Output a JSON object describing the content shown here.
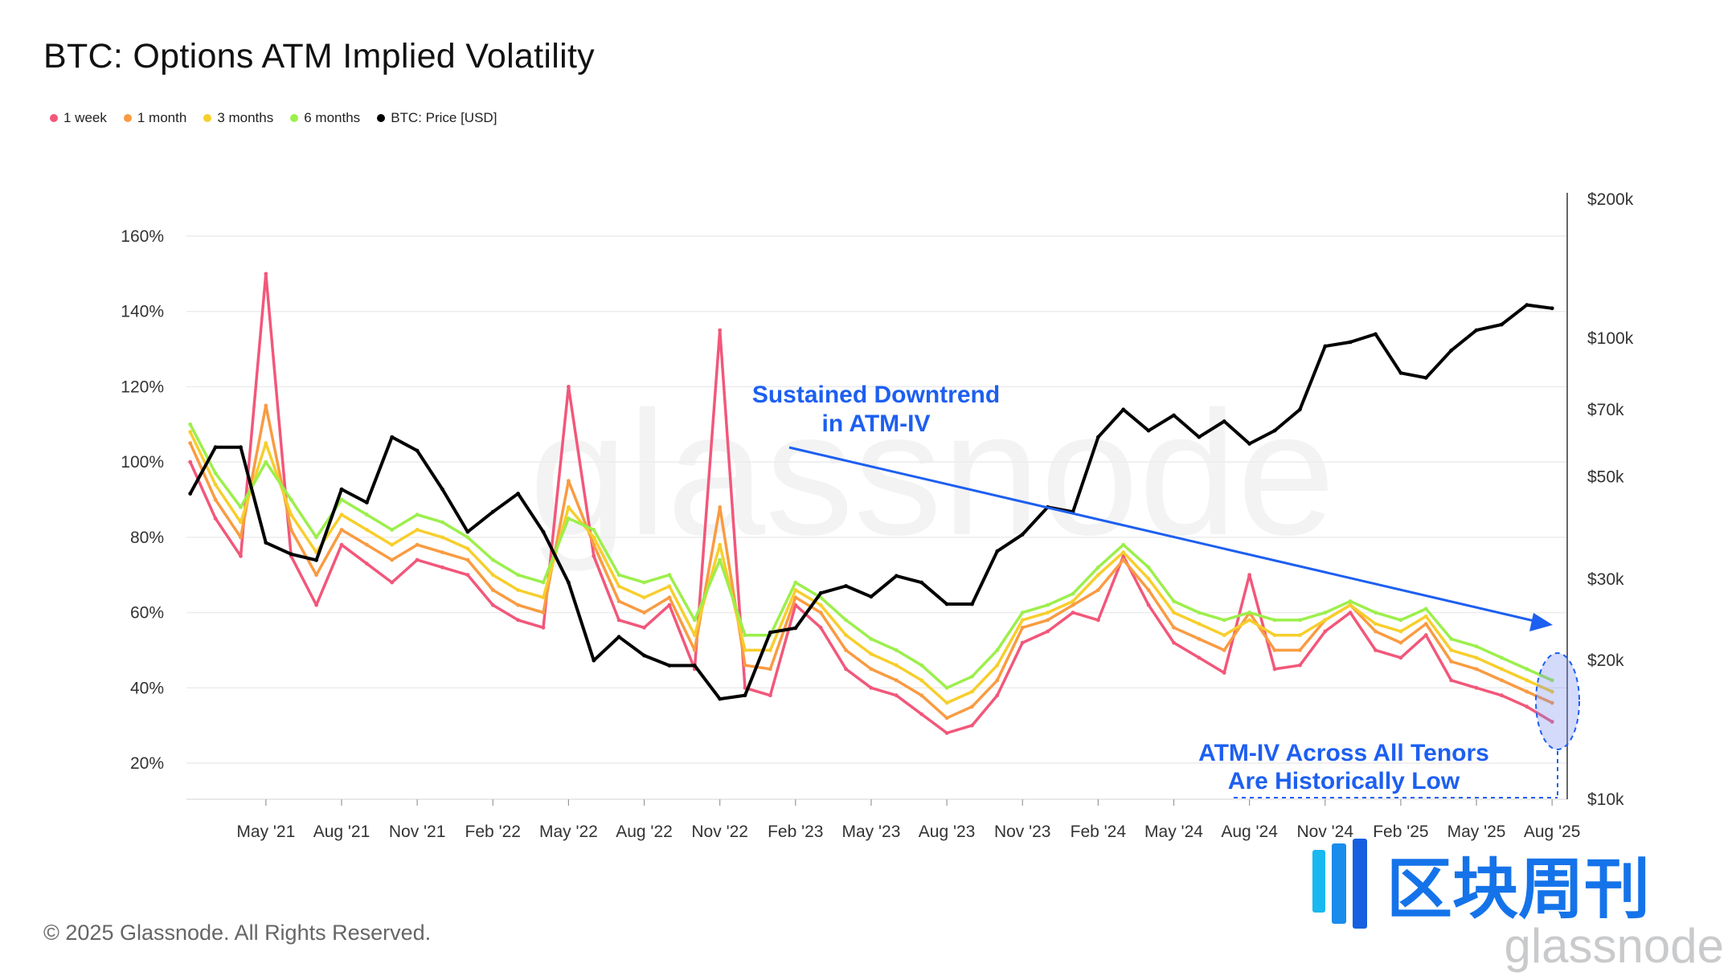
{
  "chart_data": {
    "type": "line",
    "title": "BTC: Options ATM Implied Volatility",
    "legend_position": "top-left",
    "grid": "horizontal",
    "y_left": {
      "ticks": [
        "20%",
        "40%",
        "60%",
        "80%",
        "100%",
        "120%",
        "140%",
        "160%"
      ],
      "tick_values": [
        20,
        40,
        60,
        80,
        100,
        120,
        140,
        160
      ],
      "range": [
        10,
        162
      ]
    },
    "y_right": {
      "scale": "log",
      "ticks": [
        "$10k",
        "$20k",
        "$30k",
        "$50k",
        "$70k",
        "$100k",
        "$200k"
      ],
      "tick_values": [
        10000,
        20000,
        30000,
        50000,
        70000,
        100000,
        200000
      ],
      "range": [
        10000,
        200000
      ]
    },
    "x_ticks": [
      "May '21",
      "Aug '21",
      "Nov '21",
      "Feb '22",
      "May '22",
      "Aug '22",
      "Nov '22",
      "Feb '23",
      "May '23",
      "Aug '23",
      "Nov '23",
      "Feb '24",
      "May '24",
      "Aug '24",
      "Nov '24",
      "Feb '25",
      "May '25",
      "Aug '25"
    ],
    "x_tick_dates": [
      "2021-05",
      "2021-08",
      "2021-11",
      "2022-02",
      "2022-05",
      "2022-08",
      "2022-11",
      "2023-02",
      "2023-05",
      "2023-08",
      "2023-11",
      "2024-02",
      "2024-05",
      "2024-08",
      "2024-11",
      "2025-02",
      "2025-05",
      "2025-08"
    ],
    "x_range": [
      "2021-02",
      "2025-08"
    ],
    "series": [
      {
        "name": "1 week",
        "color": "#f2577a",
        "axis": "left",
        "x": [
          "2021-02",
          "2021-03",
          "2021-04",
          "2021-05",
          "2021-06",
          "2021-07",
          "2021-08",
          "2021-09",
          "2021-10",
          "2021-11",
          "2021-12",
          "2022-01",
          "2022-02",
          "2022-03",
          "2022-04",
          "2022-05",
          "2022-06",
          "2022-07",
          "2022-08",
          "2022-09",
          "2022-10",
          "2022-11",
          "2022-12",
          "2023-01",
          "2023-02",
          "2023-03",
          "2023-04",
          "2023-05",
          "2023-06",
          "2023-07",
          "2023-08",
          "2023-09",
          "2023-10",
          "2023-11",
          "2023-12",
          "2024-01",
          "2024-02",
          "2024-03",
          "2024-04",
          "2024-05",
          "2024-06",
          "2024-07",
          "2024-08",
          "2024-09",
          "2024-10",
          "2024-11",
          "2024-12",
          "2025-01",
          "2025-02",
          "2025-03",
          "2025-04",
          "2025-05",
          "2025-06",
          "2025-07",
          "2025-08"
        ],
        "y": [
          100,
          85,
          75,
          150,
          75,
          62,
          78,
          73,
          68,
          74,
          72,
          70,
          62,
          58,
          56,
          120,
          75,
          58,
          56,
          62,
          45,
          135,
          40,
          38,
          62,
          56,
          45,
          40,
          38,
          33,
          28,
          30,
          38,
          52,
          55,
          60,
          58,
          75,
          62,
          52,
          48,
          44,
          70,
          45,
          46,
          55,
          60,
          50,
          48,
          54,
          42,
          40,
          38,
          35,
          31
        ]
      },
      {
        "name": "1 month",
        "color": "#f99b42",
        "axis": "left",
        "x": [
          "2021-02",
          "2021-03",
          "2021-04",
          "2021-05",
          "2021-06",
          "2021-07",
          "2021-08",
          "2021-09",
          "2021-10",
          "2021-11",
          "2021-12",
          "2022-01",
          "2022-02",
          "2022-03",
          "2022-04",
          "2022-05",
          "2022-06",
          "2022-07",
          "2022-08",
          "2022-09",
          "2022-10",
          "2022-11",
          "2022-12",
          "2023-01",
          "2023-02",
          "2023-03",
          "2023-04",
          "2023-05",
          "2023-06",
          "2023-07",
          "2023-08",
          "2023-09",
          "2023-10",
          "2023-11",
          "2023-12",
          "2024-01",
          "2024-02",
          "2024-03",
          "2024-04",
          "2024-05",
          "2024-06",
          "2024-07",
          "2024-08",
          "2024-09",
          "2024-10",
          "2024-11",
          "2024-12",
          "2025-01",
          "2025-02",
          "2025-03",
          "2025-04",
          "2025-05",
          "2025-06",
          "2025-07",
          "2025-08"
        ],
        "y": [
          105,
          90,
          80,
          115,
          82,
          70,
          82,
          78,
          74,
          78,
          76,
          74,
          66,
          62,
          60,
          95,
          78,
          63,
          60,
          64,
          50,
          88,
          46,
          45,
          64,
          60,
          50,
          45,
          42,
          38,
          32,
          35,
          42,
          56,
          58,
          62,
          66,
          74,
          66,
          56,
          53,
          50,
          60,
          50,
          50,
          58,
          62,
          55,
          52,
          57,
          47,
          45,
          42,
          39,
          36
        ]
      },
      {
        "name": "3 months",
        "color": "#f7ce2c",
        "axis": "left",
        "x": [
          "2021-02",
          "2021-03",
          "2021-04",
          "2021-05",
          "2021-06",
          "2021-07",
          "2021-08",
          "2021-09",
          "2021-10",
          "2021-11",
          "2021-12",
          "2022-01",
          "2022-02",
          "2022-03",
          "2022-04",
          "2022-05",
          "2022-06",
          "2022-07",
          "2022-08",
          "2022-09",
          "2022-10",
          "2022-11",
          "2022-12",
          "2023-01",
          "2023-02",
          "2023-03",
          "2023-04",
          "2023-05",
          "2023-06",
          "2023-07",
          "2023-08",
          "2023-09",
          "2023-10",
          "2023-11",
          "2023-12",
          "2024-01",
          "2024-02",
          "2024-03",
          "2024-04",
          "2024-05",
          "2024-06",
          "2024-07",
          "2024-08",
          "2024-09",
          "2024-10",
          "2024-11",
          "2024-12",
          "2025-01",
          "2025-02",
          "2025-03",
          "2025-04",
          "2025-05",
          "2025-06",
          "2025-07",
          "2025-08"
        ],
        "y": [
          108,
          94,
          84,
          105,
          86,
          76,
          86,
          82,
          78,
          82,
          80,
          77,
          70,
          66,
          64,
          88,
          80,
          67,
          64,
          67,
          54,
          78,
          50,
          50,
          66,
          62,
          54,
          49,
          46,
          42,
          36,
          39,
          46,
          58,
          60,
          63,
          70,
          76,
          69,
          60,
          57,
          54,
          58,
          54,
          54,
          58,
          62,
          57,
          55,
          59,
          50,
          48,
          45,
          42,
          39
        ]
      },
      {
        "name": "6 months",
        "color": "#9cef4b",
        "axis": "left",
        "x": [
          "2021-02",
          "2021-03",
          "2021-04",
          "2021-05",
          "2021-06",
          "2021-07",
          "2021-08",
          "2021-09",
          "2021-10",
          "2021-11",
          "2021-12",
          "2022-01",
          "2022-02",
          "2022-03",
          "2022-04",
          "2022-05",
          "2022-06",
          "2022-07",
          "2022-08",
          "2022-09",
          "2022-10",
          "2022-11",
          "2022-12",
          "2023-01",
          "2023-02",
          "2023-03",
          "2023-04",
          "2023-05",
          "2023-06",
          "2023-07",
          "2023-08",
          "2023-09",
          "2023-10",
          "2023-11",
          "2023-12",
          "2024-01",
          "2024-02",
          "2024-03",
          "2024-04",
          "2024-05",
          "2024-06",
          "2024-07",
          "2024-08",
          "2024-09",
          "2024-10",
          "2024-11",
          "2024-12",
          "2025-01",
          "2025-02",
          "2025-03",
          "2025-04",
          "2025-05",
          "2025-06",
          "2025-07",
          "2025-08"
        ],
        "y": [
          110,
          97,
          88,
          100,
          90,
          80,
          90,
          86,
          82,
          86,
          84,
          80,
          74,
          70,
          68,
          85,
          82,
          70,
          68,
          70,
          58,
          74,
          54,
          54,
          68,
          64,
          58,
          53,
          50,
          46,
          40,
          43,
          50,
          60,
          62,
          65,
          72,
          78,
          72,
          63,
          60,
          58,
          60,
          58,
          58,
          60,
          63,
          60,
          58,
          61,
          53,
          51,
          48,
          45,
          42
        ]
      },
      {
        "name": "BTC: Price [USD]",
        "color": "#000000",
        "axis": "right",
        "x": [
          "2021-02",
          "2021-03",
          "2021-04",
          "2021-05",
          "2021-06",
          "2021-07",
          "2021-08",
          "2021-09",
          "2021-10",
          "2021-11",
          "2021-12",
          "2022-01",
          "2022-02",
          "2022-03",
          "2022-04",
          "2022-05",
          "2022-06",
          "2022-07",
          "2022-08",
          "2022-09",
          "2022-10",
          "2022-11",
          "2022-12",
          "2023-01",
          "2023-02",
          "2023-03",
          "2023-04",
          "2023-05",
          "2023-06",
          "2023-07",
          "2023-08",
          "2023-09",
          "2023-10",
          "2023-11",
          "2023-12",
          "2024-01",
          "2024-02",
          "2024-03",
          "2024-04",
          "2024-05",
          "2024-06",
          "2024-07",
          "2024-08",
          "2024-09",
          "2024-10",
          "2024-11",
          "2024-12",
          "2025-01",
          "2025-02",
          "2025-03",
          "2025-04",
          "2025-05",
          "2025-06",
          "2025-07",
          "2025-08"
        ],
        "y": [
          46000,
          58000,
          58000,
          36000,
          34000,
          33000,
          47000,
          44000,
          61000,
          57000,
          47000,
          38000,
          42000,
          46000,
          38000,
          29500,
          20000,
          22500,
          20500,
          19500,
          19500,
          16500,
          16800,
          23000,
          23500,
          28000,
          29000,
          27500,
          30500,
          29500,
          26500,
          26500,
          34500,
          37500,
          43000,
          42000,
          61000,
          70000,
          63000,
          68000,
          61000,
          66000,
          59000,
          63000,
          70000,
          96000,
          98000,
          102000,
          84000,
          82000,
          94000,
          104000,
          107000,
          118000,
          116000
        ]
      }
    ],
    "annotations": {
      "downtrend": [
        "Sustained Downtrend",
        "in ATM-IV"
      ],
      "lows": [
        "ATM-IV Across All Tenors",
        "Are Historically Low"
      ]
    }
  },
  "page": {
    "copyright": "© 2025 Glassnode. All Rights Reserved.",
    "watermark": "glassnode",
    "brand": {
      "cn": "区块周刊",
      "en": "glassnode"
    }
  }
}
